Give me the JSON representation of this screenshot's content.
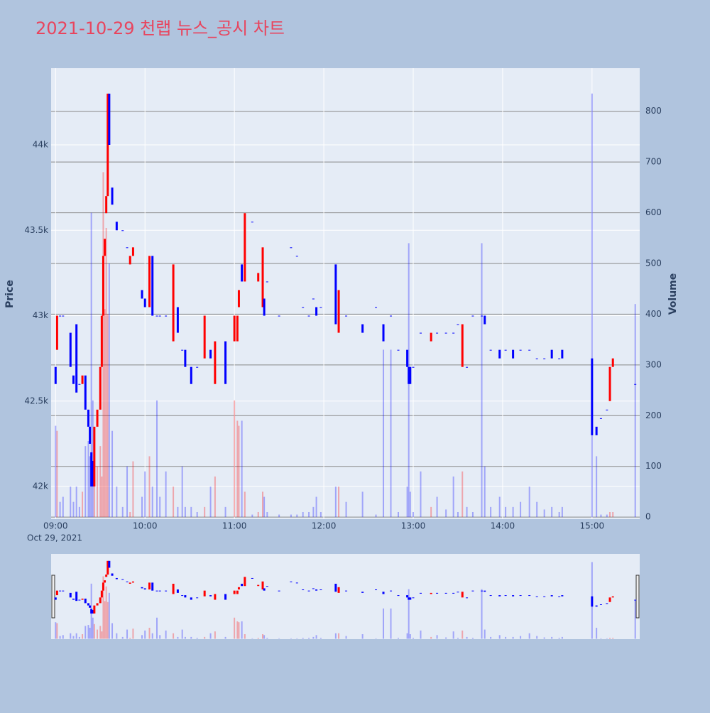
{
  "chart_data": {
    "type": "candlestick",
    "title": "2021-10-29 천랩 뉴스_공시 차트",
    "ylabel": "Price",
    "y2label": "Volume",
    "increasing_color": "#ff0000",
    "decreasing_color": "#0000ff",
    "ylim": [
      41809,
      44449
    ],
    "yticks": [
      {
        "value": 42000,
        "label": "42k"
      },
      {
        "value": 42500,
        "label": "42.5k"
      },
      {
        "value": 43000,
        "label": "43k"
      },
      {
        "value": 43500,
        "label": "43.5k"
      },
      {
        "value": 44000,
        "label": "44k"
      }
    ],
    "y2lim": [
      -4,
      885
    ],
    "y2ticks": [
      0,
      100,
      200,
      300,
      400,
      500,
      600,
      700,
      800
    ],
    "xlim": [
      "2021-10-29 08:57",
      "2021-10-29 15:32"
    ],
    "xticks": [
      {
        "value": "2021-10-29 09:00",
        "label": "09:00"
      },
      {
        "value": "2021-10-29 10:00",
        "label": "10:00"
      },
      {
        "value": "2021-10-29 11:00",
        "label": "11:00"
      },
      {
        "value": "2021-10-29 12:00",
        "label": "12:00"
      },
      {
        "value": "2021-10-29 13:00",
        "label": "13:00"
      },
      {
        "value": "2021-10-29 14:00",
        "label": "14:00"
      },
      {
        "value": "2021-10-29 15:00",
        "label": "15:00"
      }
    ],
    "x_date_label": "Oct 29, 2021",
    "x": [
      "2021-10-29 09:00",
      "2021-10-29 09:01",
      "2021-10-29 09:03",
      "2021-10-29 09:05",
      "2021-10-29 09:10",
      "2021-10-29 09:12",
      "2021-10-29 09:14",
      "2021-10-29 09:16",
      "2021-10-29 09:18",
      "2021-10-29 09:20",
      "2021-10-29 09:22",
      "2021-10-29 09:23",
      "2021-10-29 09:24",
      "2021-10-29 09:25",
      "2021-10-29 09:26",
      "2021-10-29 09:28",
      "2021-10-29 09:30",
      "2021-10-29 09:31",
      "2021-10-29 09:32",
      "2021-10-29 09:33",
      "2021-10-29 09:34",
      "2021-10-29 09:35",
      "2021-10-29 09:36",
      "2021-10-29 09:38",
      "2021-10-29 09:41",
      "2021-10-29 09:45",
      "2021-10-29 09:48",
      "2021-10-29 09:50",
      "2021-10-29 09:52",
      "2021-10-29 09:58",
      "2021-10-29 10:00",
      "2021-10-29 10:03",
      "2021-10-29 10:05",
      "2021-10-29 10:08",
      "2021-10-29 10:10",
      "2021-10-29 10:14",
      "2021-10-29 10:19",
      "2021-10-29 10:22",
      "2021-10-29 10:25",
      "2021-10-29 10:27",
      "2021-10-29 10:31",
      "2021-10-29 10:35",
      "2021-10-29 10:40",
      "2021-10-29 10:44",
      "2021-10-29 10:47",
      "2021-10-29 10:54",
      "2021-10-29 11:00",
      "2021-10-29 11:02",
      "2021-10-29 11:03",
      "2021-10-29 11:05",
      "2021-10-29 11:07",
      "2021-10-29 11:12",
      "2021-10-29 11:16",
      "2021-10-29 11:19",
      "2021-10-29 11:20",
      "2021-10-29 11:22",
      "2021-10-29 11:30",
      "2021-10-29 11:38",
      "2021-10-29 11:42",
      "2021-10-29 11:46",
      "2021-10-29 11:50",
      "2021-10-29 11:53",
      "2021-10-29 11:55",
      "2021-10-29 11:58",
      "2021-10-29 12:08",
      "2021-10-29 12:10",
      "2021-10-29 12:15",
      "2021-10-29 12:26",
      "2021-10-29 12:35",
      "2021-10-29 12:40",
      "2021-10-29 12:45",
      "2021-10-29 12:50",
      "2021-10-29 12:56",
      "2021-10-29 12:57",
      "2021-10-29 12:58",
      "2021-10-29 13:00",
      "2021-10-29 13:05",
      "2021-10-29 13:12",
      "2021-10-29 13:16",
      "2021-10-29 13:22",
      "2021-10-29 13:27",
      "2021-10-29 13:30",
      "2021-10-29 13:33",
      "2021-10-29 13:36",
      "2021-10-29 13:40",
      "2021-10-29 13:46",
      "2021-10-29 13:48",
      "2021-10-29 13:52",
      "2021-10-29 13:58",
      "2021-10-29 14:02",
      "2021-10-29 14:07",
      "2021-10-29 14:12",
      "2021-10-29 14:18",
      "2021-10-29 14:23",
      "2021-10-29 14:28",
      "2021-10-29 14:33",
      "2021-10-29 14:38",
      "2021-10-29 14:40",
      "2021-10-29 15:00",
      "2021-10-29 15:03",
      "2021-10-29 15:06",
      "2021-10-29 15:10",
      "2021-10-29 15:12",
      "2021-10-29 15:14",
      "2021-10-29 15:29"
    ],
    "open": [
      42700,
      42800,
      43000,
      43000,
      42900,
      42650,
      42950,
      42600,
      42600,
      42650,
      42450,
      42350,
      42200,
      42150,
      42000,
      42350,
      42450,
      42700,
      43000,
      43350,
      43600,
      43700,
      44300,
      43750,
      43550,
      43500,
      43400,
      43300,
      43350,
      43150,
      43100,
      43050,
      43350,
      43000,
      43000,
      43000,
      42850,
      43050,
      42800,
      42800,
      42700,
      42700,
      42750,
      42800,
      42600,
      42850,
      42850,
      42850,
      43050,
      43300,
      43200,
      43550,
      43200,
      43050,
      43100,
      43200,
      43000,
      43400,
      43350,
      43050,
      43000,
      43100,
      43050,
      43050,
      43300,
      42900,
      43000,
      42950,
      43050,
      42950,
      43000,
      42800,
      42800,
      42700,
      42700,
      42700,
      42900,
      42850,
      42900,
      42900,
      42900,
      42950,
      42700,
      42700,
      43000,
      43000,
      43000,
      42800,
      42800,
      42800,
      42800,
      42800,
      42800,
      42750,
      42750,
      42800,
      42750,
      42800,
      42750,
      42350,
      42400,
      42450,
      42500,
      42700,
      42600
    ],
    "close": [
      42600,
      43000,
      43000,
      43000,
      42700,
      42600,
      42550,
      42600,
      42650,
      42450,
      42350,
      42250,
      42000,
      42000,
      42350,
      42450,
      42700,
      43000,
      43350,
      43450,
      43700,
      44300,
      44000,
      43650,
      43500,
      43500,
      43400,
      43350,
      43400,
      43100,
      43050,
      43350,
      43000,
      43000,
      43000,
      43000,
      43300,
      42900,
      42800,
      42700,
      42600,
      42700,
      43000,
      42750,
      42850,
      42600,
      43000,
      43000,
      43150,
      43200,
      43600,
      43550,
      43250,
      43400,
      43000,
      43200,
      43000,
      43400,
      43350,
      43050,
      43000,
      43100,
      43000,
      43050,
      42950,
      43150,
      43000,
      42900,
      43050,
      42850,
      43000,
      42800,
      42700,
      42600,
      42600,
      42700,
      42900,
      42900,
      42900,
      42900,
      42900,
      42950,
      42950,
      42700,
      43000,
      43000,
      42950,
      42800,
      42750,
      42800,
      42750,
      42800,
      42800,
      42750,
      42750,
      42750,
      42750,
      42750,
      42300,
      42300,
      42400,
      42450,
      42700,
      42750,
      42600
    ],
    "volume": [
      180,
      170,
      30,
      40,
      60,
      30,
      60,
      20,
      50,
      140,
      150,
      120,
      600,
      230,
      160,
      100,
      140,
      80,
      680,
      410,
      570,
      400,
      500,
      170,
      60,
      20,
      100,
      10,
      110,
      40,
      90,
      120,
      60,
      230,
      40,
      90,
      60,
      20,
      100,
      20,
      20,
      10,
      20,
      60,
      80,
      20,
      230,
      190,
      180,
      190,
      50,
      5,
      10,
      50,
      40,
      10,
      5,
      5,
      5,
      10,
      10,
      20,
      40,
      10,
      60,
      60,
      30,
      50,
      5,
      330,
      330,
      10,
      60,
      540,
      50,
      10,
      90,
      20,
      40,
      15,
      80,
      10,
      90,
      20,
      10,
      540,
      100,
      20,
      40,
      20,
      20,
      30,
      60,
      30,
      15,
      20,
      10,
      20,
      835,
      120,
      5,
      5,
      10,
      10,
      420
    ]
  }
}
